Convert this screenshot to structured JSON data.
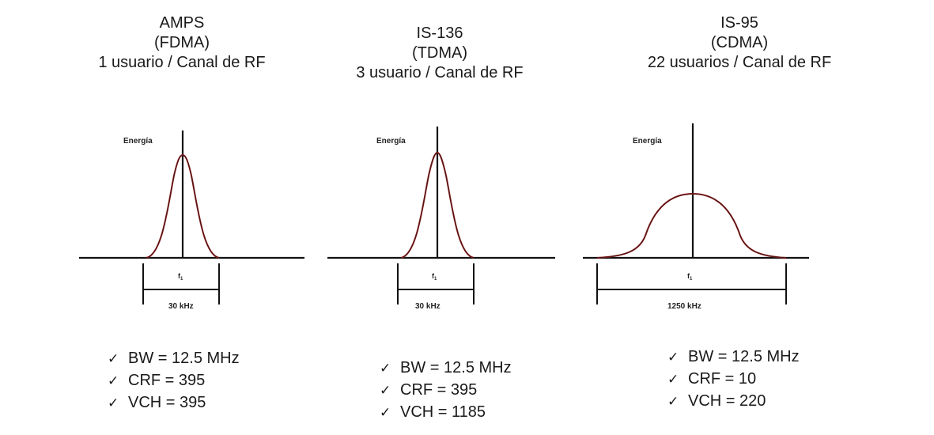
{
  "panels": [
    {
      "title": "AMPS",
      "access": "(FDMA)",
      "users": "1 usuario / Canal de RF",
      "energy_label": "Energía",
      "freq_label": "f",
      "freq_sub": "1",
      "channel_bw": "30 kHz",
      "stats": [
        {
          "check": "✓",
          "text": "BW = 12.5 MHz"
        },
        {
          "check": "✓",
          "text": "CRF = 395"
        },
        {
          "check": "✓",
          "text": "VCH = 395"
        }
      ]
    },
    {
      "title": "IS-136",
      "access": "(TDMA)",
      "users": "3 usuario / Canal de RF",
      "energy_label": "Energía",
      "freq_label": "f",
      "freq_sub": "1",
      "channel_bw": "30 kHz",
      "stats": [
        {
          "check": "✓",
          "text": "BW = 12.5 MHz"
        },
        {
          "check": "✓",
          "text": "CRF = 395"
        },
        {
          "check": "✓",
          "text": "VCH = 1185"
        }
      ]
    },
    {
      "title": "IS-95",
      "access": "(CDMA)",
      "users": "22 usuarios / Canal de RF",
      "energy_label": "Energía",
      "freq_label": "f",
      "freq_sub": "1",
      "channel_bw": "1250 kHz",
      "stats": [
        {
          "check": "✓",
          "text": "BW = 12.5 MHz"
        },
        {
          "check": "✓",
          "text": "CRF = 10"
        },
        {
          "check": "✓",
          "text": "VCH = 220"
        }
      ]
    }
  ],
  "colors": {
    "curve": "#8b1a1a",
    "axis": "#111111",
    "text": "#1a1a1a"
  }
}
